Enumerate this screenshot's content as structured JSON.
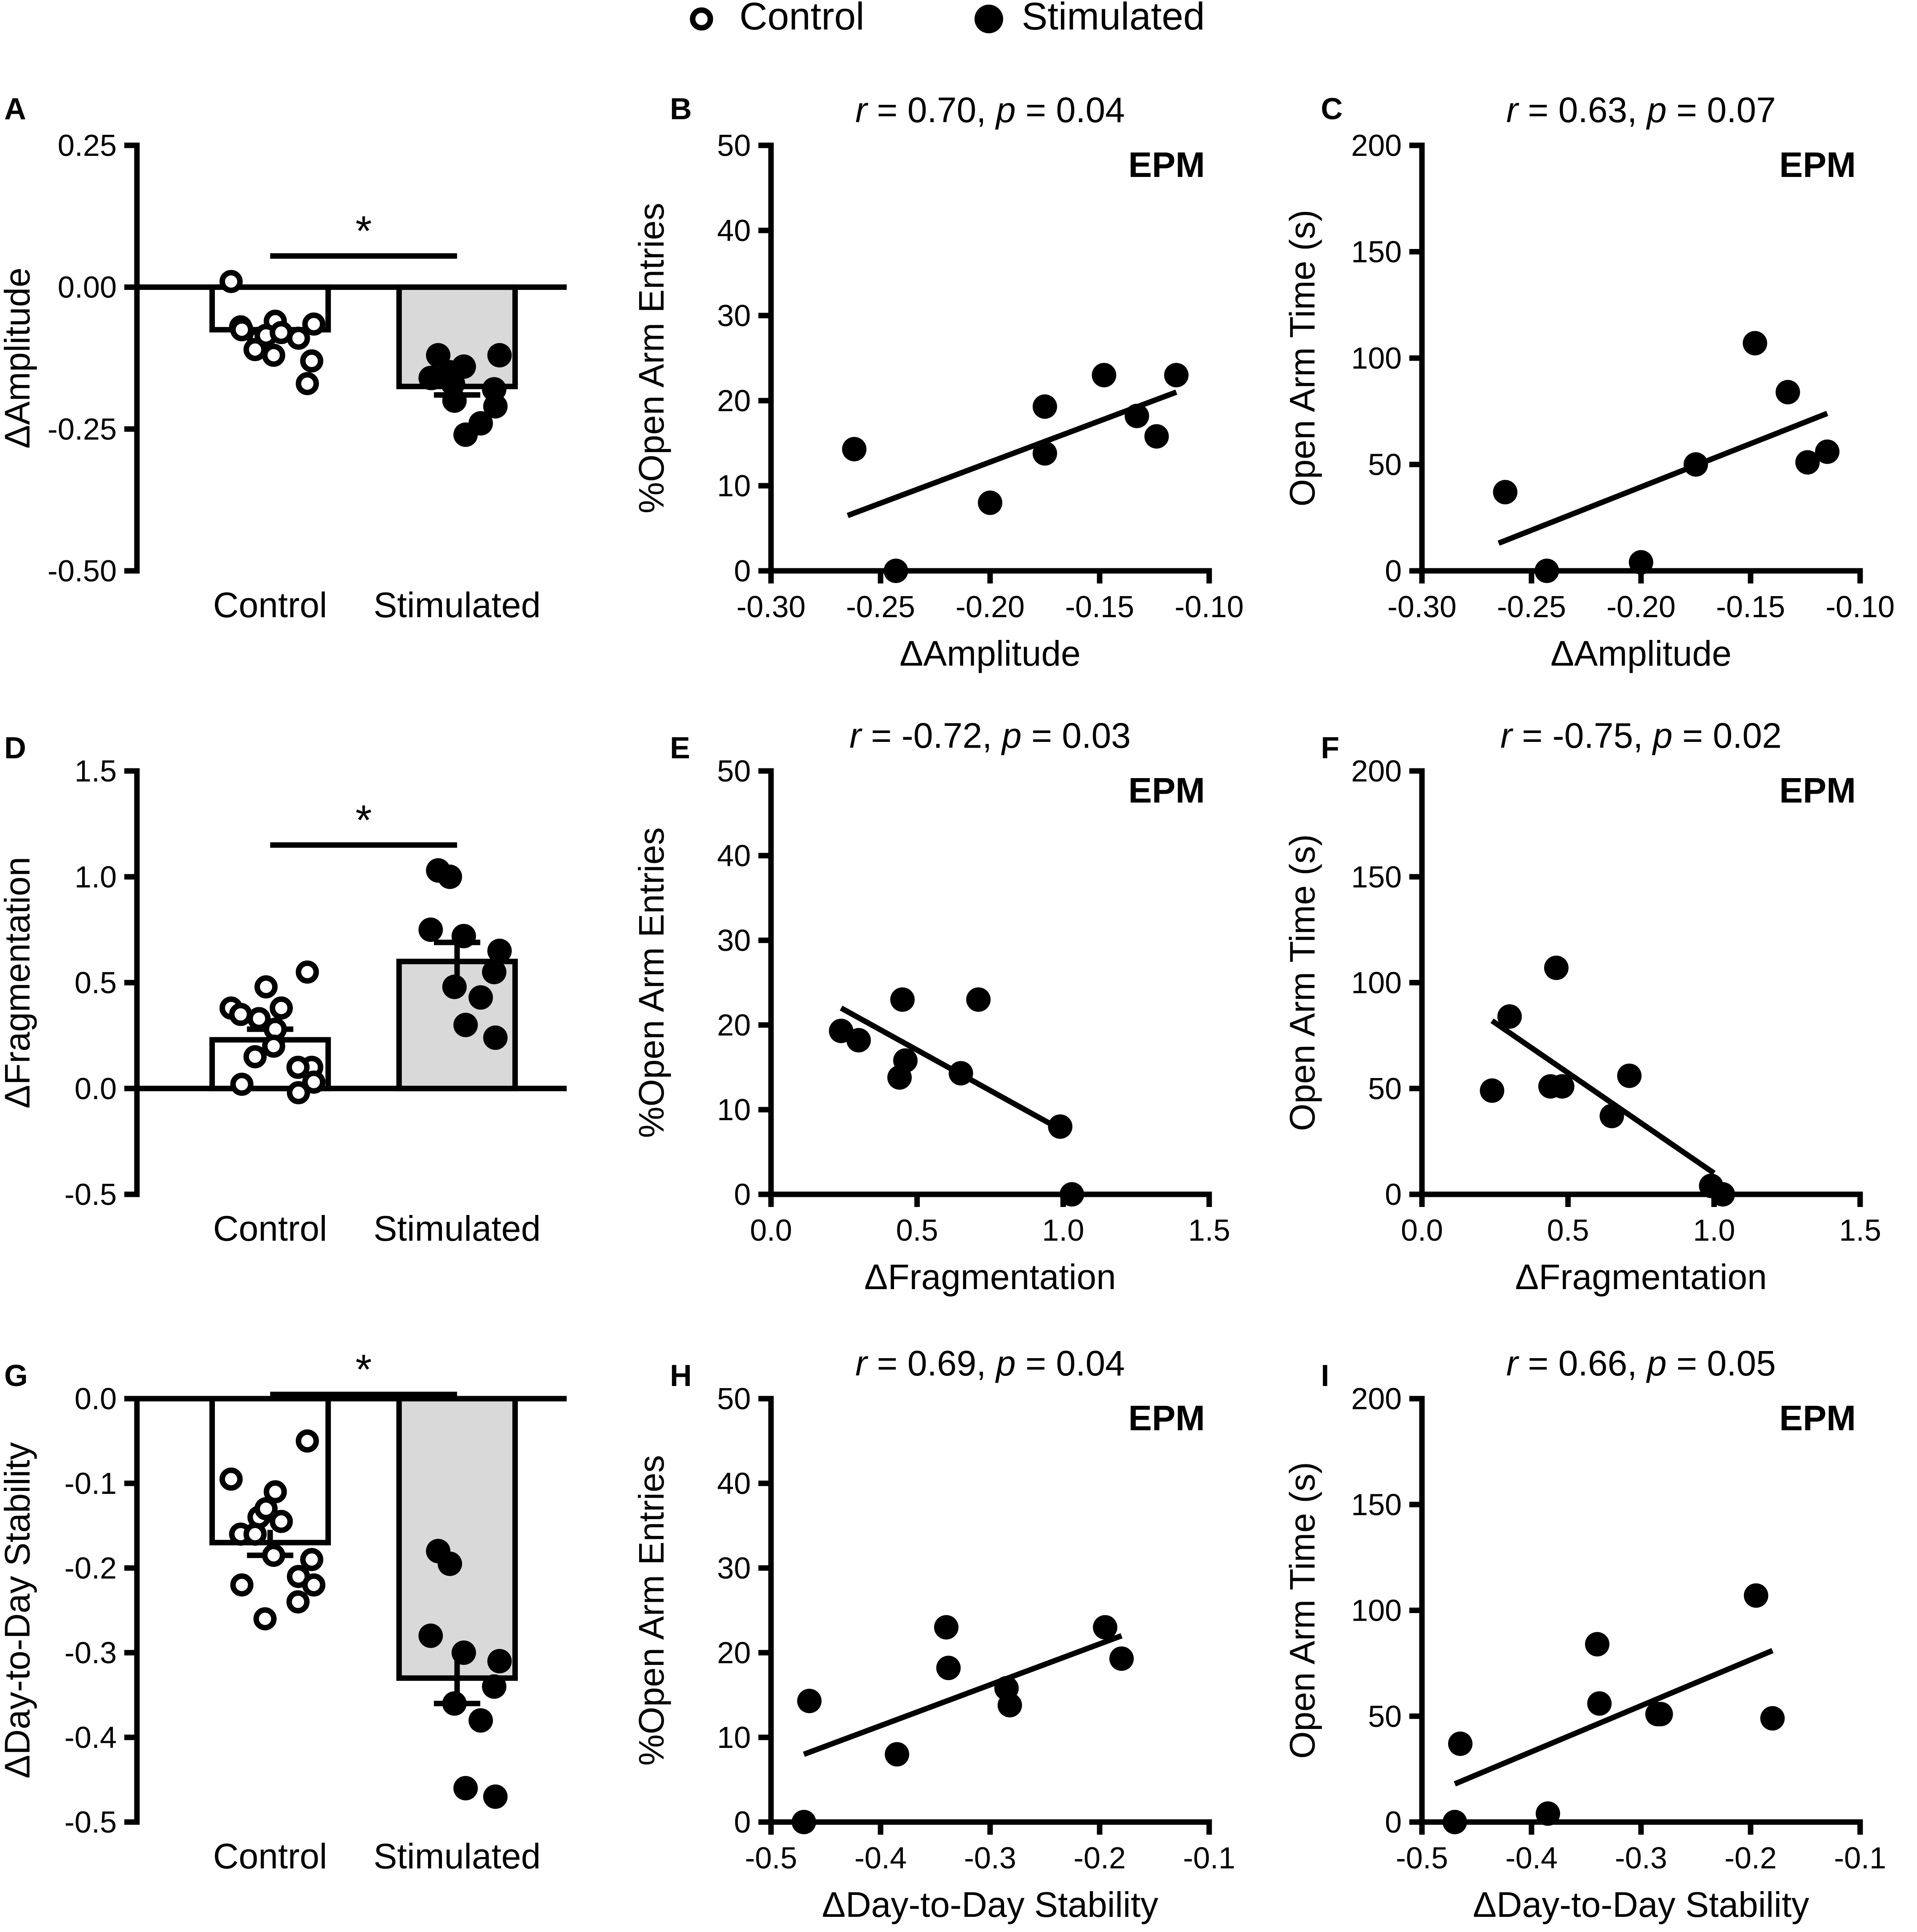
{
  "legend": {
    "placement": "top-center",
    "items": [
      {
        "label": "Control",
        "marker": "open-circle"
      },
      {
        "label": "Stimulated",
        "marker": "filled-circle"
      }
    ]
  },
  "chart_data": [
    {
      "panel": "A",
      "type": "bar",
      "ylabel": "ΔAmplitude",
      "xlabel": "",
      "categories": [
        "Control",
        "Stimulated"
      ],
      "ylim": [
        -0.5,
        0.25
      ],
      "yticks": [
        0.25,
        0.0,
        -0.25,
        -0.5
      ],
      "ytick_labels": [
        "0.25",
        "0.00",
        "-0.25",
        "-0.50"
      ],
      "baseline": 0.0,
      "series": [
        {
          "name": "Control",
          "mean": -0.075,
          "sem": 0.015,
          "fill": "#ffffff",
          "points": [
            -0.17,
            0.01,
            -0.06,
            -0.09,
            -0.085,
            -0.08,
            -0.07,
            -0.11,
            -0.12,
            -0.13,
            -0.09,
            -0.075,
            -0.065
          ]
        },
        {
          "name": "Stimulated",
          "mean": -0.175,
          "sem": 0.015,
          "fill": "#d9d9d9",
          "points": [
            -0.12,
            -0.15,
            -0.16,
            -0.14,
            -0.12,
            -0.18,
            -0.2,
            -0.24,
            -0.26,
            -0.21,
            -0.17,
            -0.16
          ]
        }
      ],
      "significance": {
        "label": "*",
        "y": 0.055
      }
    },
    {
      "panel": "B",
      "type": "scatter",
      "title": "r = 0.70, p = 0.04",
      "title_r": "r",
      "title_r_value": " = 0.70, ",
      "title_p": "p",
      "title_p_value": " = 0.04",
      "annotation": "EPM",
      "xlabel": "ΔAmplitude",
      "ylabel": "%Open Arm Entries",
      "xlim": [
        -0.3,
        -0.1
      ],
      "ylim": [
        0,
        50
      ],
      "xticks": [
        -0.3,
        -0.25,
        -0.2,
        -0.15,
        -0.1
      ],
      "xtick_labels": [
        "-0.30",
        "-0.25",
        "-0.20",
        "-0.15",
        "-0.10"
      ],
      "yticks": [
        0,
        10,
        20,
        30,
        40,
        50
      ],
      "ytick_labels": [
        "0",
        "10",
        "20",
        "30",
        "40",
        "50"
      ],
      "x": [
        -0.262,
        -0.243,
        -0.2,
        -0.175,
        -0.175,
        -0.148,
        -0.133,
        -0.124,
        -0.115
      ],
      "y": [
        14.3,
        0,
        8,
        13.8,
        19.3,
        23,
        18.2,
        15.8,
        23
      ],
      "fit": {
        "x": [
          -0.265,
          -0.115
        ],
        "y": [
          6.5,
          21
        ]
      }
    },
    {
      "panel": "C",
      "type": "scatter",
      "title": "r = 0.63, p = 0.07",
      "title_r": "r",
      "title_r_value": " = 0.63, ",
      "title_p": "p",
      "title_p_value": " = 0.07",
      "annotation": "EPM",
      "xlabel": "ΔAmplitude",
      "ylabel": "Open Arm Time (s)",
      "xlim": [
        -0.3,
        -0.1
      ],
      "ylim": [
        0,
        200
      ],
      "xticks": [
        -0.3,
        -0.25,
        -0.2,
        -0.15,
        -0.1
      ],
      "xtick_labels": [
        "-0.30",
        "-0.25",
        "-0.20",
        "-0.15",
        "-0.10"
      ],
      "yticks": [
        0,
        50,
        100,
        150,
        200
      ],
      "ytick_labels": [
        "0",
        "50",
        "100",
        "150",
        "200"
      ],
      "x": [
        -0.262,
        -0.243,
        -0.2,
        -0.175,
        -0.148,
        -0.133,
        -0.124,
        -0.115
      ],
      "y": [
        37,
        0,
        4,
        50,
        107,
        84,
        51,
        56
      ],
      "fit": {
        "x": [
          -0.265,
          -0.115
        ],
        "y": [
          13,
          74
        ]
      }
    },
    {
      "panel": "D",
      "type": "bar",
      "ylabel": "ΔFragmentation",
      "xlabel": "",
      "categories": [
        "Control",
        "Stimulated"
      ],
      "ylim": [
        -0.5,
        1.5
      ],
      "yticks": [
        1.5,
        1.0,
        0.5,
        0.0,
        -0.5
      ],
      "ytick_labels": [
        "1.5",
        "1.0",
        "0.5",
        "0.0",
        "-0.5"
      ],
      "baseline": 0.0,
      "series": [
        {
          "name": "Control",
          "mean": 0.23,
          "sem": 0.05,
          "fill": "#ffffff",
          "points": [
            0.55,
            0.38,
            0.28,
            0.33,
            0.48,
            0.38,
            0.35,
            0.15,
            0.2,
            0.1,
            -0.02,
            0.02,
            0.03,
            0.1
          ]
        },
        {
          "name": "Stimulated",
          "mean": 0.6,
          "sem": 0.09,
          "fill": "#d9d9d9",
          "points": [
            1.03,
            1.0,
            0.75,
            0.72,
            0.65,
            0.55,
            0.48,
            0.43,
            0.3,
            0.24
          ]
        }
      ],
      "significance": {
        "label": "*",
        "y": 1.15
      }
    },
    {
      "panel": "E",
      "type": "scatter",
      "title": "r = -0.72, p = 0.03",
      "title_r": "r",
      "title_r_value": " = -0.72, ",
      "title_p": "p",
      "title_p_value": " = 0.03",
      "annotation": "EPM",
      "xlabel": "ΔFragmentation",
      "ylabel": "%Open Arm Entries",
      "xlim": [
        0,
        1.5
      ],
      "ylim": [
        0,
        50
      ],
      "xticks": [
        0,
        0.5,
        1.0,
        1.5
      ],
      "xtick_labels": [
        "0.0",
        "0.5",
        "1.0",
        "1.5"
      ],
      "yticks": [
        0,
        10,
        20,
        30,
        40,
        50
      ],
      "ytick_labels": [
        "0",
        "10",
        "20",
        "30",
        "40",
        "50"
      ],
      "x": [
        0.24,
        0.3,
        0.45,
        0.46,
        0.44,
        0.65,
        0.71,
        0.99,
        1.03
      ],
      "y": [
        19.3,
        18.2,
        23,
        15.8,
        13.8,
        14.3,
        23,
        8,
        0
      ],
      "fit": {
        "x": [
          0.24,
          1.0
        ],
        "y": [
          22,
          7.5
        ]
      }
    },
    {
      "panel": "F",
      "type": "scatter",
      "title": "r = -0.75, p = 0.02",
      "title_r": "r",
      "title_r_value": " = -0.75, ",
      "title_p": "p",
      "title_p_value": " = 0.02",
      "annotation": "EPM",
      "xlabel": "ΔFragmentation",
      "ylabel": "Open Arm Time (s)",
      "xlim": [
        0,
        1.5
      ],
      "ylim": [
        0,
        200
      ],
      "xticks": [
        0,
        0.5,
        1.0,
        1.5
      ],
      "xtick_labels": [
        "0.0",
        "0.5",
        "1.0",
        "1.5"
      ],
      "yticks": [
        0,
        50,
        100,
        150,
        200
      ],
      "ytick_labels": [
        "0",
        "50",
        "100",
        "150",
        "200"
      ],
      "x": [
        0.24,
        0.3,
        0.44,
        0.48,
        0.46,
        0.65,
        0.71,
        0.99,
        1.03
      ],
      "y": [
        49,
        84,
        51,
        51,
        107,
        37,
        56,
        4,
        0
      ],
      "fit": {
        "x": [
          0.24,
          1.0
        ],
        "y": [
          82,
          10
        ]
      }
    },
    {
      "panel": "G",
      "type": "bar",
      "ylabel": "ΔDay-to-Day Stability",
      "xlabel": "",
      "categories": [
        "Control",
        "Stimulated"
      ],
      "ylim": [
        -0.5,
        0.0
      ],
      "yticks": [
        0.0,
        -0.1,
        -0.2,
        -0.3,
        -0.4,
        -0.5
      ],
      "ytick_labels": [
        "0.0",
        "-0.1",
        "-0.2",
        "-0.3",
        "-0.4",
        "-0.5"
      ],
      "baseline": 0.0,
      "series": [
        {
          "name": "Control",
          "mean": -0.17,
          "sem": 0.015,
          "fill": "#ffffff",
          "points": [
            -0.05,
            -0.095,
            -0.11,
            -0.14,
            -0.13,
            -0.145,
            -0.16,
            -0.16,
            -0.185,
            -0.19,
            -0.21,
            -0.22,
            -0.22,
            -0.24,
            -0.26
          ]
        },
        {
          "name": "Stimulated",
          "mean": -0.33,
          "sem": 0.03,
          "fill": "#d9d9d9",
          "points": [
            -0.18,
            -0.195,
            -0.28,
            -0.3,
            -0.31,
            -0.34,
            -0.36,
            -0.38,
            -0.46,
            -0.47
          ]
        }
      ],
      "significance": {
        "label": "*",
        "y": 0.005
      }
    },
    {
      "panel": "H",
      "type": "scatter",
      "title": "r = 0.69, p = 0.04",
      "title_r": "r",
      "title_r_value": " = 0.69, ",
      "title_p": "p",
      "title_p_value": " = 0.04",
      "annotation": "EPM",
      "xlabel": "ΔDay-to-Day Stability",
      "ylabel": "%Open Arm Entries",
      "xlim": [
        -0.5,
        -0.1
      ],
      "ylim": [
        0,
        50
      ],
      "xticks": [
        -0.5,
        -0.4,
        -0.3,
        -0.2,
        -0.1
      ],
      "xtick_labels": [
        "-0.5",
        "-0.4",
        "-0.3",
        "-0.2",
        "-0.1"
      ],
      "yticks": [
        0,
        10,
        20,
        30,
        40,
        50
      ],
      "ytick_labels": [
        "0",
        "10",
        "20",
        "30",
        "40",
        "50"
      ],
      "x": [
        -0.47,
        -0.465,
        -0.385,
        -0.34,
        -0.338,
        -0.285,
        -0.282,
        -0.195,
        -0.18
      ],
      "y": [
        0,
        14.3,
        8,
        23,
        18.2,
        15.8,
        13.8,
        23,
        19.3
      ],
      "fit": {
        "x": [
          -0.47,
          -0.18
        ],
        "y": [
          8,
          22
        ]
      }
    },
    {
      "panel": "I",
      "type": "scatter",
      "title": "r = 0.66, p = 0.05",
      "title_r": "r",
      "title_r_value": " = 0.66, ",
      "title_p": "p",
      "title_p_value": " = 0.05",
      "annotation": "EPM",
      "xlabel": "ΔDay-to-Day Stability",
      "ylabel": "Open Arm Time (s)",
      "xlim": [
        -0.5,
        -0.1
      ],
      "ylim": [
        0,
        200
      ],
      "xticks": [
        -0.5,
        -0.4,
        -0.3,
        -0.2,
        -0.1
      ],
      "xtick_labels": [
        "-0.5",
        "-0.4",
        "-0.3",
        "-0.2",
        "-0.1"
      ],
      "yticks": [
        0,
        50,
        100,
        150,
        200
      ],
      "ytick_labels": [
        "0",
        "50",
        "100",
        "150",
        "200"
      ],
      "x": [
        -0.47,
        -0.465,
        -0.385,
        -0.34,
        -0.338,
        -0.285,
        -0.282,
        -0.195,
        -0.18
      ],
      "y": [
        0,
        37,
        4,
        84,
        56,
        51,
        51,
        107,
        49
      ],
      "fit": {
        "x": [
          -0.47,
          -0.18
        ],
        "y": [
          18,
          81
        ]
      }
    }
  ]
}
